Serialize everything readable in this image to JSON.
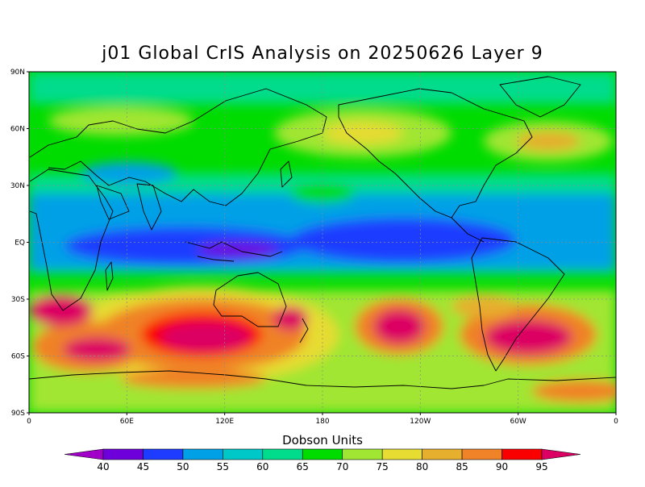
{
  "title": "j01 Global CrIS Analysis on 20250626 Layer 9",
  "map": {
    "projection": "cylindrical equidistant",
    "lon_ticks": [
      "0",
      "60E",
      "120E",
      "180",
      "120W",
      "60W",
      "0"
    ],
    "lat_ticks": [
      "90N",
      "60N",
      "30N",
      "EQ",
      "30S",
      "60S",
      "90S"
    ],
    "grid": "dotted"
  },
  "colorbar": {
    "title": "Dobson Units",
    "levels": [
      "40",
      "45",
      "50",
      "55",
      "60",
      "65",
      "70",
      "75",
      "80",
      "85",
      "90",
      "95"
    ],
    "colors": [
      "#a000c8",
      "#6e00dc",
      "#1e3cff",
      "#00a0e6",
      "#00c8c8",
      "#00dc8c",
      "#00dc00",
      "#a0e632",
      "#e6dc32",
      "#e6af2d",
      "#f08228",
      "#fa0000",
      "#dc0064"
    ]
  }
}
